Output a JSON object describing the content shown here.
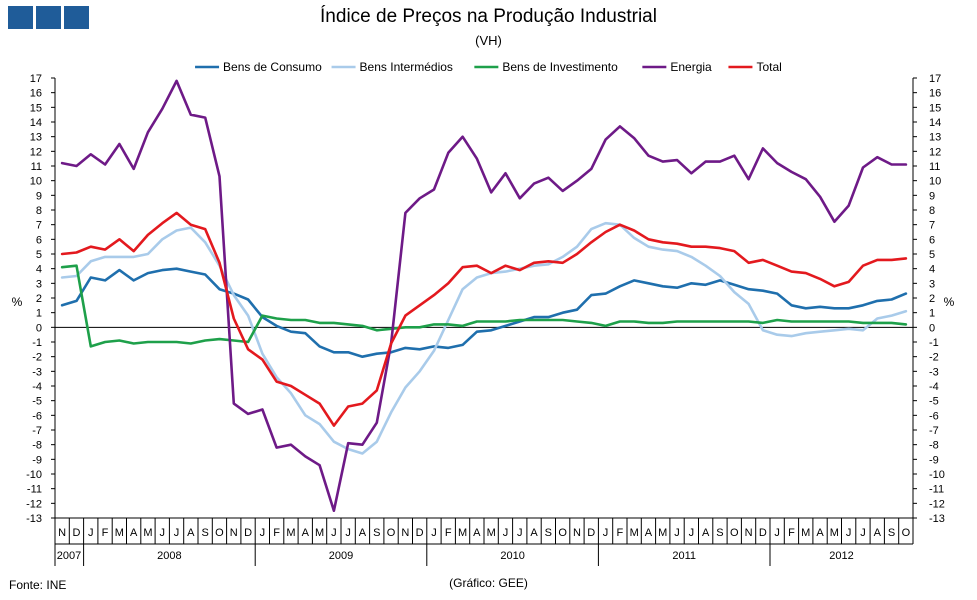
{
  "header": {
    "title": "Índice de Preços na Produção Industrial",
    "subtitle": "(VH)"
  },
  "footer": {
    "source": "Fonte: INE",
    "credit": "(Gráfico: GEE)"
  },
  "chart_data": {
    "type": "line",
    "ylabel_left": "%",
    "ylabel_right": "%",
    "ylim": [
      -13,
      17
    ],
    "yticks": [
      -13,
      -12,
      -11,
      -10,
      -9,
      -8,
      -7,
      -6,
      -5,
      -4,
      -3,
      -2,
      -1,
      0,
      1,
      2,
      3,
      4,
      5,
      6,
      7,
      8,
      9,
      10,
      11,
      12,
      13,
      14,
      15,
      16,
      17
    ],
    "legend_position": "top",
    "x": [
      "N",
      "D",
      "J",
      "F",
      "M",
      "A",
      "M",
      "J",
      "J",
      "A",
      "S",
      "O",
      "N",
      "D",
      "J",
      "F",
      "M",
      "A",
      "M",
      "J",
      "J",
      "A",
      "S",
      "O",
      "N",
      "D",
      "J",
      "F",
      "M",
      "A",
      "M",
      "J",
      "J",
      "A",
      "S",
      "O",
      "N",
      "D",
      "J",
      "F",
      "M",
      "A",
      "M",
      "J",
      "J",
      "A",
      "S",
      "O",
      "N",
      "D",
      "J",
      "F",
      "M",
      "A",
      "M",
      "J",
      "J",
      "A",
      "S",
      "O"
    ],
    "years": [
      {
        "label": "2007",
        "start": 0,
        "end": 2
      },
      {
        "label": "2008",
        "start": 2,
        "end": 14
      },
      {
        "label": "2009",
        "start": 14,
        "end": 26
      },
      {
        "label": "2010",
        "start": 26,
        "end": 38
      },
      {
        "label": "2011",
        "start": 38,
        "end": 50
      },
      {
        "label": "2012",
        "start": 50,
        "end": 60
      }
    ],
    "series": [
      {
        "name": "Bens de Consumo",
        "color": "#1f6fad",
        "values": [
          1.5,
          1.8,
          3.4,
          3.2,
          3.9,
          3.2,
          3.7,
          3.9,
          4.0,
          3.8,
          3.6,
          2.6,
          2.3,
          1.9,
          0.7,
          0.1,
          -0.3,
          -0.4,
          -1.3,
          -1.7,
          -1.7,
          -2.0,
          -1.8,
          -1.7,
          -1.4,
          -1.5,
          -1.3,
          -1.4,
          -1.2,
          -0.3,
          -0.2,
          0.1,
          0.4,
          0.7,
          0.7,
          1.0,
          1.2,
          2.2,
          2.3,
          2.8,
          3.2,
          3.0,
          2.8,
          2.7,
          3.0,
          2.9,
          3.2,
          2.9,
          2.6,
          2.5,
          2.3,
          1.5,
          1.3,
          1.4,
          1.3,
          1.3,
          1.5,
          1.8,
          1.9,
          2.3
        ]
      },
      {
        "name": "Bens Intermédios",
        "color": "#a9cbea",
        "values": [
          3.4,
          3.5,
          4.5,
          4.8,
          4.8,
          4.8,
          5.0,
          6.0,
          6.6,
          6.8,
          5.8,
          4.2,
          2.2,
          0.8,
          -1.8,
          -3.4,
          -4.5,
          -6.0,
          -6.6,
          -7.8,
          -8.3,
          -8.6,
          -7.8,
          -5.8,
          -4.1,
          -3.0,
          -1.6,
          0.5,
          2.6,
          3.4,
          3.7,
          3.8,
          4.0,
          4.2,
          4.3,
          4.8,
          5.5,
          6.7,
          7.1,
          7.0,
          6.1,
          5.5,
          5.3,
          5.2,
          4.8,
          4.2,
          3.5,
          2.4,
          1.6,
          -0.2,
          -0.5,
          -0.6,
          -0.4,
          -0.3,
          -0.2,
          -0.1,
          -0.2,
          0.6,
          0.8,
          1.1
        ]
      },
      {
        "name": "Bens de Investimento",
        "color": "#1ea04a",
        "values": [
          4.1,
          4.2,
          -1.3,
          -1.0,
          -0.9,
          -1.1,
          -1.0,
          -1.0,
          -1.0,
          -1.1,
          -0.9,
          -0.8,
          -0.9,
          -1.0,
          0.8,
          0.6,
          0.5,
          0.5,
          0.3,
          0.3,
          0.2,
          0.1,
          -0.2,
          -0.1,
          0.0,
          0.0,
          0.2,
          0.2,
          0.1,
          0.4,
          0.4,
          0.4,
          0.5,
          0.5,
          0.5,
          0.5,
          0.4,
          0.3,
          0.1,
          0.4,
          0.4,
          0.3,
          0.3,
          0.4,
          0.4,
          0.4,
          0.4,
          0.4,
          0.4,
          0.3,
          0.5,
          0.4,
          0.4,
          0.4,
          0.4,
          0.4,
          0.3,
          0.3,
          0.3,
          0.2
        ]
      },
      {
        "name": "Energia",
        "color": "#6e1a87",
        "values": [
          11.2,
          11.0,
          11.8,
          11.1,
          12.5,
          10.8,
          13.3,
          14.9,
          16.8,
          14.5,
          14.3,
          10.3,
          -5.2,
          -5.9,
          -5.6,
          -8.2,
          -8.0,
          -8.8,
          -9.4,
          -12.5,
          -7.9,
          -8.0,
          -6.5,
          -1.1,
          7.8,
          8.8,
          9.4,
          11.9,
          13.0,
          11.5,
          9.2,
          10.5,
          8.8,
          9.8,
          10.2,
          9.3,
          10.0,
          10.8,
          12.8,
          13.7,
          12.9,
          11.7,
          11.3,
          11.4,
          10.5,
          11.3,
          11.3,
          11.7,
          10.1,
          12.2,
          11.2,
          10.6,
          10.1,
          8.9,
          7.2,
          8.3,
          10.9,
          11.6,
          11.1,
          11.1
        ]
      },
      {
        "name": "Total",
        "color": "#e3191e",
        "values": [
          5.0,
          5.1,
          5.5,
          5.3,
          6.0,
          5.2,
          6.3,
          7.1,
          7.8,
          7.0,
          6.7,
          4.4,
          0.6,
          -1.5,
          -2.2,
          -3.7,
          -4.0,
          -4.6,
          -5.2,
          -6.7,
          -5.4,
          -5.2,
          -4.3,
          -1.1,
          0.8,
          1.5,
          2.2,
          3.0,
          4.1,
          4.2,
          3.7,
          4.2,
          3.9,
          4.4,
          4.5,
          4.4,
          5.0,
          5.8,
          6.5,
          7.0,
          6.6,
          6.0,
          5.8,
          5.7,
          5.5,
          5.5,
          5.4,
          5.2,
          4.4,
          4.6,
          4.2,
          3.8,
          3.7,
          3.3,
          2.8,
          3.1,
          4.2,
          4.6,
          4.6,
          4.7
        ]
      }
    ]
  }
}
